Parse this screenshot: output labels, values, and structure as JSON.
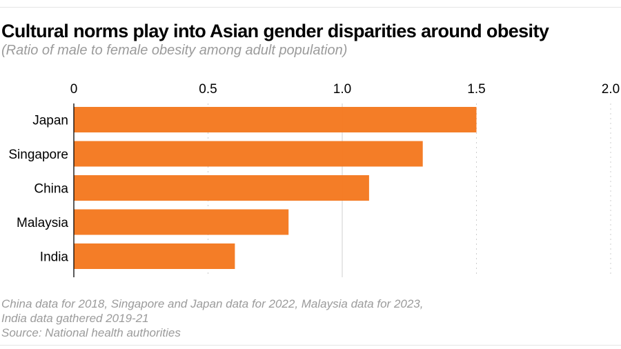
{
  "header": {
    "title": "Cultural norms play into Asian gender disparities around obesity",
    "subtitle": "(Ratio of male to female obesity among adult population)"
  },
  "footer": {
    "notes": [
      "China data for 2018, Singapore and Japan data for 2022, Malaysia data for 2023,",
      "India data gathered 2019-21",
      "Source: National health authorities"
    ]
  },
  "chart_data": {
    "type": "bar",
    "orientation": "horizontal",
    "title": "Cultural norms play into Asian gender disparities around obesity",
    "subtitle": "(Ratio of male to female obesity among adult population)",
    "categories": [
      "Japan",
      "Singapore",
      "China",
      "Malaysia",
      "India"
    ],
    "values": [
      1.5,
      1.3,
      1.1,
      0.8,
      0.6
    ],
    "xlim": [
      0,
      2.0
    ],
    "xticks": [
      0,
      0.5,
      1.0,
      1.5,
      2.0
    ],
    "xtick_labels": [
      "0",
      "0.5",
      "1.0",
      "1.5",
      "2.0"
    ],
    "x_axis_position": "top",
    "grid": true,
    "bar_color": "#f47920"
  }
}
